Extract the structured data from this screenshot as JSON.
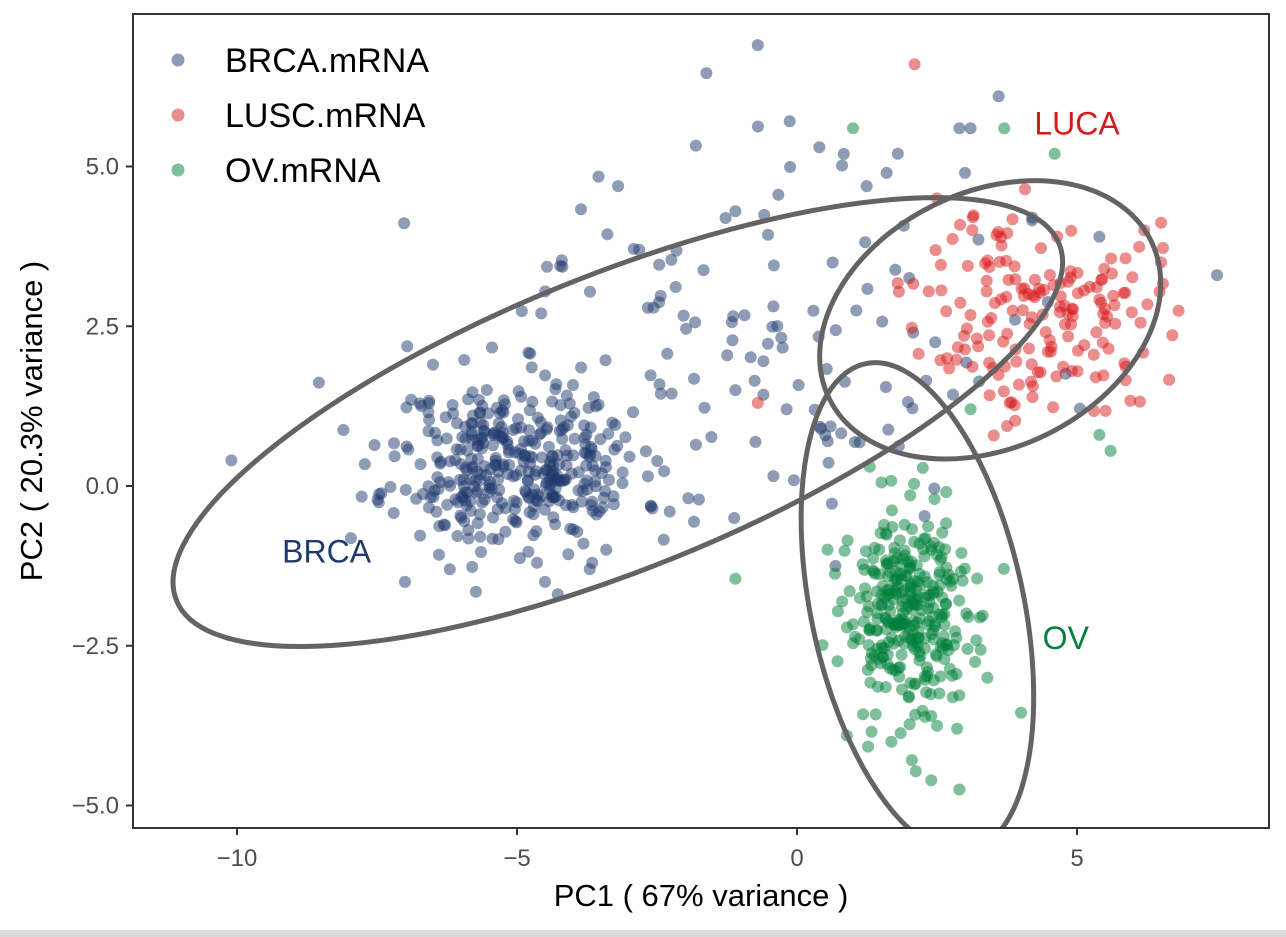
{
  "chart_data": {
    "type": "scatter",
    "xlabel": "PC1 ( 67% variance )",
    "ylabel": "PC2 ( 20.3% variance )",
    "xlim": [
      -12,
      8.5
    ],
    "ylim": [
      -5.4,
      7.4
    ],
    "x_ticks": [
      {
        "value": -10,
        "label": "−10"
      },
      {
        "value": -5,
        "label": "−5"
      },
      {
        "value": 0,
        "label": "0"
      },
      {
        "value": 5,
        "label": "5"
      }
    ],
    "y_ticks": [
      {
        "value": 5,
        "label": "5.0"
      },
      {
        "value": 2.5,
        "label": "2.5"
      },
      {
        "value": 0,
        "label": "0.0"
      },
      {
        "value": -2.5,
        "label": "−2.5"
      },
      {
        "value": -5,
        "label": "−5.0"
      }
    ],
    "grid": false,
    "legend_position": "top-left",
    "point_alpha": 0.5,
    "series": [
      {
        "name": "BRCA.mRNA",
        "color": "#1f3a6e",
        "label": "BRCA",
        "label_at": [
          -8.4,
          -1.2
        ],
        "cluster": {
          "center": [
            -5.0,
            0.3
          ],
          "sd": [
            1.1,
            0.65
          ],
          "n": 360,
          "seed": 11
        },
        "spread": {
          "center": [
            -1.5,
            2.0
          ],
          "sd": [
            2.6,
            1.45
          ],
          "n": 140,
          "seed": 23
        },
        "points": [
          [
            -0.7,
            6.9
          ],
          [
            3.6,
            6.1
          ],
          [
            2.9,
            5.6
          ],
          [
            3.1,
            5.6
          ],
          [
            0.4,
            5.3
          ],
          [
            1.8,
            5.2
          ],
          [
            3.0,
            4.9
          ],
          [
            1.6,
            4.9
          ],
          [
            7.5,
            3.3
          ],
          [
            5.4,
            3.9
          ],
          [
            4.2,
            4.2
          ],
          [
            -1.1,
            4.3
          ],
          [
            -10.1,
            0.4
          ],
          [
            -1.1,
            1.5
          ],
          [
            -3.7,
            -1.3
          ],
          [
            -6.5,
            1.9
          ],
          [
            -4.5,
            -1.5
          ],
          [
            -7.0,
            -1.5
          ]
        ],
        "ellipse": {
          "cx": -3.2,
          "cy": 1.0,
          "rx": 8.5,
          "ry": 2.3,
          "angle_deg": 22
        }
      },
      {
        "name": "LUSC.mRNA",
        "color": "#d7191c",
        "label": "LUCA",
        "label_at": [
          5.0,
          5.5
        ],
        "cluster": {
          "center": [
            4.3,
            2.7
          ],
          "sd": [
            1.05,
            0.8
          ],
          "n": 170,
          "seed": 37
        },
        "points": [
          [
            2.1,
            6.6
          ],
          [
            -0.7,
            1.3
          ],
          [
            2.5,
            4.5
          ],
          [
            6.2,
            4.0
          ],
          [
            6.5,
            3.5
          ],
          [
            3.8,
            1.3
          ]
        ],
        "ellipse": {
          "cx": 3.45,
          "cy": 2.6,
          "rx": 3.2,
          "ry": 2.0,
          "angle_deg": 26
        }
      },
      {
        "name": "OV.mRNA",
        "color": "#00803a",
        "label": "OV",
        "label_at": [
          4.8,
          -2.55
        ],
        "cluster": {
          "center": [
            2.05,
            -2.05
          ],
          "sd": [
            0.6,
            0.85
          ],
          "n": 320,
          "seed": 53
        },
        "points": [
          [
            1.0,
            5.6
          ],
          [
            4.6,
            5.2
          ],
          [
            3.7,
            5.6
          ],
          [
            -1.1,
            -1.45
          ],
          [
            2.9,
            -4.75
          ],
          [
            5.4,
            0.8
          ],
          [
            5.6,
            0.55
          ],
          [
            1.3,
            0.3
          ],
          [
            3.1,
            1.2
          ],
          [
            4.0,
            -3.55
          ],
          [
            3.4,
            -3.0
          ]
        ],
        "ellipse": {
          "cx": 2.15,
          "cy": -1.9,
          "rx": 1.9,
          "ry": 3.9,
          "angle_deg": 12
        }
      }
    ]
  }
}
